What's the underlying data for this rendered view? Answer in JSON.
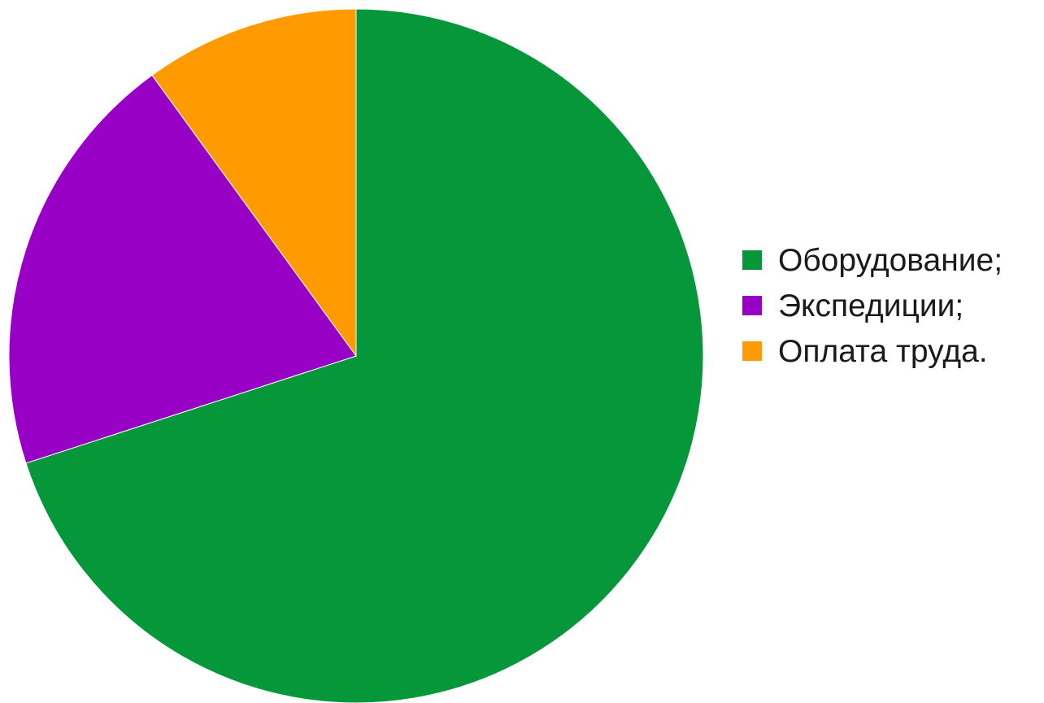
{
  "chart_data": {
    "type": "pie",
    "start_angle": "top",
    "direction": "clockwise",
    "slices": [
      {
        "label": "Оборудование;",
        "value": 70,
        "color": "#05973a"
      },
      {
        "label": "Экспедиции;",
        "value": 20,
        "color": "#9900c6"
      },
      {
        "label": "Оплата труда.",
        "value": 10,
        "color": "#ff9a00"
      }
    ],
    "legend_position": "right"
  }
}
